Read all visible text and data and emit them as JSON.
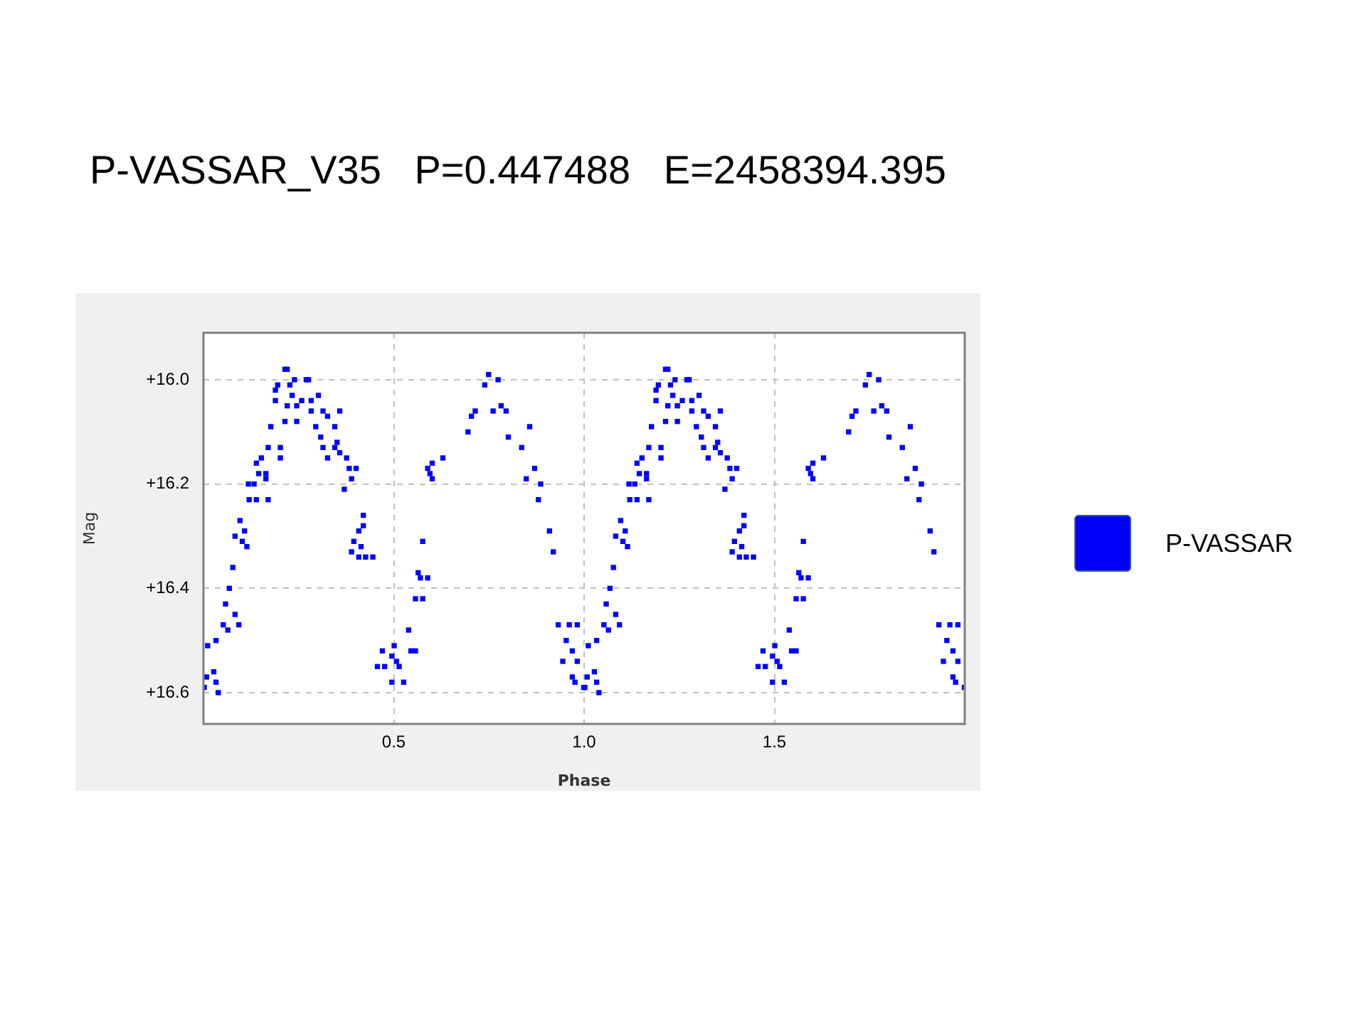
{
  "chart_data": {
    "type": "scatter",
    "title": "P-VASSAR_V35   P=0.447488   E=2458394.395",
    "xlabel": "Phase",
    "ylabel": "Mag",
    "xlim": [
      0,
      2
    ],
    "ylim": [
      16.66,
      15.91
    ],
    "xticks": [
      0.5,
      {
        "value": 1,
        "label": "1.0"
      },
      1.5
    ],
    "yticks": [
      {
        "value": 16.0,
        "label": "+16.0"
      },
      {
        "value": 16.2,
        "label": "+16.2"
      },
      {
        "value": 16.4,
        "label": "+16.4"
      },
      {
        "value": 16.6,
        "label": "+16.6"
      }
    ],
    "grid": true,
    "legend": "right",
    "marker": "square",
    "x": [
      0.002,
      0.008,
      0.027,
      0.033,
      0.039,
      0.011,
      0.033,
      0.052,
      0.064,
      0.083,
      0.093,
      0.058,
      0.068,
      0.077,
      0.083,
      0.096,
      0.102,
      0.114,
      0.108,
      0.12,
      0.139,
      0.17,
      0.118,
      0.133,
      0.145,
      0.164,
      0.139,
      0.152,
      0.164,
      0.17,
      0.177,
      0.202,
      0.202,
      0.189,
      0.195,
      0.214,
      0.22,
      0.189,
      0.227,
      0.239,
      0.27,
      0.276,
      0.233,
      0.22,
      0.245,
      0.214,
      0.245,
      0.258,
      0.283,
      0.283,
      0.302,
      0.314,
      0.326,
      0.358,
      0.295,
      0.345,
      0.351,
      0.308,
      0.314,
      0.326,
      0.345,
      0.358,
      0.376,
      0.383,
      0.401,
      0.389,
      0.37,
      0.42,
      0.42,
      0.408,
      0.395,
      0.389,
      0.414,
      0.408,
      0.426,
      0.445,
      0.47,
      0.457,
      0.476,
      0.495,
      0.501,
      0.507,
      0.514,
      0.495,
      0.526,
      0.539,
      0.545,
      0.557,
      0.557,
      0.576,
      0.564,
      0.57,
      0.589,
      0.576,
      0.589,
      0.601,
      0.595,
      0.601,
      0.629,
      0.695,
      0.704,
      0.714,
      0.739,
      0.749,
      0.774,
      0.761,
      0.782,
      0.795,
      0.801,
      0.857,
      0.836,
      0.848,
      0.87,
      0.886,
      0.88,
      0.909,
      0.919,
      0.932,
      0.961,
      0.982,
      0.953,
      0.969,
      0.944,
      0.982,
      0.969,
      0.976,
      0.999,
      1.002,
      1.008,
      1.027,
      1.033,
      1.039,
      1.011,
      1.033,
      1.052,
      1.064,
      1.083,
      1.093,
      1.058,
      1.068,
      1.077,
      1.083,
      1.096,
      1.102,
      1.114,
      1.108,
      1.12,
      1.139,
      1.17,
      1.118,
      1.133,
      1.145,
      1.164,
      1.139,
      1.152,
      1.164,
      1.17,
      1.177,
      1.202,
      1.202,
      1.189,
      1.195,
      1.214,
      1.22,
      1.189,
      1.227,
      1.239,
      1.27,
      1.276,
      1.233,
      1.22,
      1.245,
      1.214,
      1.245,
      1.258,
      1.283,
      1.283,
      1.302,
      1.314,
      1.326,
      1.358,
      1.295,
      1.345,
      1.351,
      1.308,
      1.314,
      1.326,
      1.345,
      1.358,
      1.376,
      1.383,
      1.401,
      1.389,
      1.37,
      1.42,
      1.42,
      1.408,
      1.395,
      1.389,
      1.414,
      1.408,
      1.426,
      1.445,
      1.47,
      1.457,
      1.476,
      1.495,
      1.501,
      1.507,
      1.514,
      1.495,
      1.526,
      1.539,
      1.545,
      1.557,
      1.557,
      1.576,
      1.564,
      1.57,
      1.589,
      1.576,
      1.589,
      1.601,
      1.595,
      1.601,
      1.629,
      1.695,
      1.704,
      1.714,
      1.739,
      1.749,
      1.774,
      1.761,
      1.782,
      1.795,
      1.801,
      1.857,
      1.836,
      1.848,
      1.87,
      1.886,
      1.88,
      1.909,
      1.919,
      1.932,
      1.961,
      1.982,
      1.953,
      1.969,
      1.944,
      1.982,
      1.969,
      1.976,
      1.999
    ],
    "series": [
      {
        "name": "P-VASSAR",
        "color": "#0000ff",
        "values": [
          16.59,
          16.57,
          16.56,
          16.58,
          16.6,
          16.51,
          16.5,
          16.47,
          16.48,
          16.45,
          16.47,
          16.43,
          16.4,
          16.36,
          16.3,
          16.27,
          16.31,
          16.32,
          16.29,
          16.23,
          16.23,
          16.23,
          16.2,
          16.2,
          16.18,
          16.19,
          16.16,
          16.15,
          16.18,
          16.13,
          16.09,
          16.13,
          16.15,
          16.04,
          16.01,
          15.98,
          15.98,
          16.02,
          16.01,
          16.0,
          16.0,
          16.0,
          16.03,
          16.05,
          16.05,
          16.08,
          16.08,
          16.04,
          16.04,
          16.06,
          16.03,
          16.06,
          16.07,
          16.06,
          16.09,
          16.09,
          16.12,
          16.11,
          16.13,
          16.15,
          16.13,
          16.14,
          16.15,
          16.17,
          16.17,
          16.19,
          16.21,
          16.26,
          16.28,
          16.29,
          16.31,
          16.33,
          16.32,
          16.34,
          16.34,
          16.34,
          16.52,
          16.55,
          16.55,
          16.53,
          16.51,
          16.54,
          16.55,
          16.58,
          16.58,
          16.48,
          16.52,
          16.52,
          16.42,
          16.42,
          16.37,
          16.38,
          16.38,
          16.31,
          16.17,
          16.16,
          16.18,
          16.19,
          16.15,
          16.1,
          16.07,
          16.06,
          16.01,
          15.99,
          16.0,
          16.06,
          16.05,
          16.06,
          16.11,
          16.09,
          16.13,
          16.19,
          16.17,
          16.2,
          16.23,
          16.29,
          16.33,
          16.47,
          16.47,
          16.47,
          16.5,
          16.52,
          16.54,
          16.54,
          16.57,
          16.58,
          16.59,
          16.59,
          16.57,
          16.56,
          16.58,
          16.6,
          16.51,
          16.5,
          16.47,
          16.48,
          16.45,
          16.47,
          16.43,
          16.4,
          16.36,
          16.3,
          16.27,
          16.31,
          16.32,
          16.29,
          16.23,
          16.23,
          16.23,
          16.2,
          16.2,
          16.18,
          16.19,
          16.16,
          16.15,
          16.18,
          16.13,
          16.09,
          16.13,
          16.15,
          16.04,
          16.01,
          15.98,
          15.98,
          16.02,
          16.01,
          16.0,
          16.0,
          16.0,
          16.03,
          16.05,
          16.05,
          16.08,
          16.08,
          16.04,
          16.04,
          16.06,
          16.03,
          16.06,
          16.07,
          16.06,
          16.09,
          16.09,
          16.12,
          16.11,
          16.13,
          16.15,
          16.13,
          16.14,
          16.15,
          16.17,
          16.17,
          16.19,
          16.21,
          16.26,
          16.28,
          16.29,
          16.31,
          16.33,
          16.32,
          16.34,
          16.34,
          16.34,
          16.52,
          16.55,
          16.55,
          16.53,
          16.51,
          16.54,
          16.55,
          16.58,
          16.58,
          16.48,
          16.52,
          16.52,
          16.42,
          16.42,
          16.37,
          16.38,
          16.38,
          16.31,
          16.17,
          16.16,
          16.18,
          16.19,
          16.15,
          16.1,
          16.07,
          16.06,
          16.01,
          15.99,
          16.0,
          16.06,
          16.05,
          16.06,
          16.11,
          16.09,
          16.13,
          16.19,
          16.17,
          16.2,
          16.23,
          16.29,
          16.33,
          16.47,
          16.47,
          16.47,
          16.5,
          16.52,
          16.54,
          16.54,
          16.57,
          16.58,
          16.59
        ]
      }
    ]
  }
}
